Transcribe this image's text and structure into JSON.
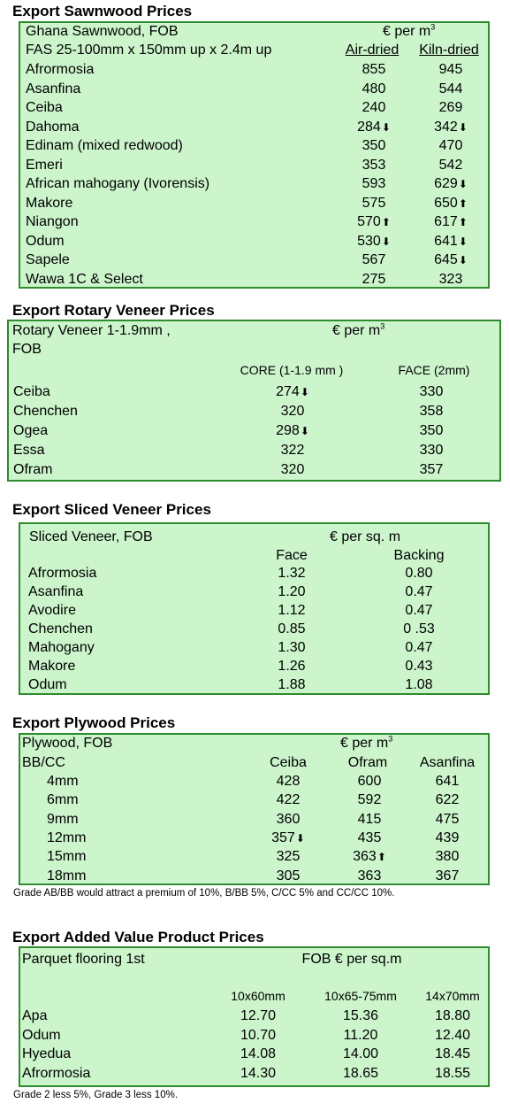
{
  "sawnwood": {
    "title": "Export Sawnwood Prices",
    "caption1": "Ghana Sawnwood, FOB",
    "unit": "€ per m",
    "unit_sup": "3",
    "caption2": "FAS 25-100mm x 150mm up x 2.4m up",
    "col1": "Air-dried",
    "col2": "Kiln-dried",
    "rows": [
      {
        "name": "Afrormosia",
        "v1": "855",
        "a1": "",
        "v2": "945",
        "a2": ""
      },
      {
        "name": "Asanfina",
        "v1": "480",
        "a1": "",
        "v2": "544",
        "a2": ""
      },
      {
        "name": "Ceiba",
        "v1": "240",
        "a1": "",
        "v2": "269",
        "a2": ""
      },
      {
        "name": "Dahoma",
        "v1": "284",
        "a1": "down",
        "v2": "342",
        "a2": "down"
      },
      {
        "name": "Edinam (mixed redwood)",
        "v1": "350",
        "a1": "",
        "v2": "470",
        "a2": ""
      },
      {
        "name": "Emeri",
        "v1": "353",
        "a1": "",
        "v2": "542",
        "a2": ""
      },
      {
        "name": "African mahogany (Ivorensis)",
        "v1": "593",
        "a1": "",
        "v2": "629",
        "a2": "down"
      },
      {
        "name": "Makore",
        "v1": "575",
        "a1": "",
        "v2": "650",
        "a2": "up"
      },
      {
        "name": "Niangon",
        "v1": "570",
        "a1": "up",
        "v2": "617",
        "a2": "up"
      },
      {
        "name": "Odum",
        "v1": "530",
        "a1": "down",
        "v2": "641",
        "a2": "down"
      },
      {
        "name": "Sapele",
        "v1": "567",
        "a1": "",
        "v2": "645",
        "a2": "down"
      },
      {
        "name": "Wawa 1C & Select",
        "v1": "275",
        "a1": "",
        "v2": "323",
        "a2": ""
      }
    ]
  },
  "rotary": {
    "title": "Export Rotary Veneer Prices",
    "caption1": "Rotary Veneer 1-1.9mm ,",
    "caption2": "FOB",
    "unit": "€  per m",
    "unit_sup": "3",
    "col1": "CORE (1-1.9 mm )",
    "col2": "FACE (2mm)",
    "rows": [
      {
        "name": "Ceiba",
        "v1": "274",
        "a1": "down",
        "v2": "330",
        "a2": ""
      },
      {
        "name": "Chenchen",
        "v1": "320",
        "a1": "",
        "v2": "358",
        "a2": ""
      },
      {
        "name": "Ogea",
        "v1": "298",
        "a1": "down",
        "v2": "350",
        "a2": ""
      },
      {
        "name": "Essa",
        "v1": "322",
        "a1": "",
        "v2": "330",
        "a2": ""
      },
      {
        "name": "Ofram",
        "v1": "320",
        "a1": "",
        "v2": "357",
        "a2": ""
      }
    ]
  },
  "sliced": {
    "title": "Export Sliced Veneer Prices",
    "caption1": "Sliced Veneer, FOB",
    "unit": "€ per sq. m",
    "col1": "Face",
    "col2": "Backing",
    "rows": [
      {
        "name": "Afrormosia",
        "v1": "1.32",
        "v2": "0.80"
      },
      {
        "name": "Asanfina",
        "v1": "1.20",
        "v2": "0.47"
      },
      {
        "name": "Avodire",
        "v1": "1.12",
        "v2": "0.47"
      },
      {
        "name": "Chenchen",
        "v1": "0.85",
        "v2": "0 .53"
      },
      {
        "name": "Mahogany",
        "v1": "1.30",
        "v2": "0.47"
      },
      {
        "name": "Makore",
        "v1": "1.26",
        "v2": "0.43"
      },
      {
        "name": "Odum",
        "v1": "1.88",
        "v2": "1.08"
      }
    ]
  },
  "plywood": {
    "title": "Export Plywood Prices",
    "caption1": "Plywood, FOB",
    "unit": "€ per m",
    "unit_sup": "3",
    "caption2": "BB/CC",
    "col1": "Ceiba",
    "col2": "Ofram",
    "col3": "Asanfina",
    "rows": [
      {
        "name": "4mm",
        "v1": "428",
        "a1": "",
        "v2": "600",
        "a2": "",
        "v3": "641"
      },
      {
        "name": "6mm",
        "v1": "422",
        "a1": "",
        "v2": "592",
        "a2": "",
        "v3": "622"
      },
      {
        "name": "9mm",
        "v1": "360",
        "a1": "",
        "v2": "415",
        "a2": "",
        "v3": "475"
      },
      {
        "name": "12mm",
        "v1": "357",
        "a1": "down",
        "v2": "435",
        "a2": "",
        "v3": "439"
      },
      {
        "name": "15mm",
        "v1": "325",
        "a1": "",
        "v2": "363",
        "a2": "up",
        "v3": "380"
      },
      {
        "name": "18mm",
        "v1": "305",
        "a1": "",
        "v2": "363",
        "a2": "",
        "v3": "367"
      }
    ],
    "note": "Grade AB/BB would attract a premium of 10%, B/BB 5%, C/CC 5% and CC/CC 10%."
  },
  "added": {
    "title": "Export Added Value Product Prices",
    "caption1": "Parquet flooring 1st",
    "unit": "FOB € per sq.m",
    "col1": "10x60mm",
    "col2": "10x65-75mm",
    "col3": "14x70mm",
    "rows": [
      {
        "name": "Apa",
        "v1": "12.70",
        "v2": "15.36",
        "v3": "18.80"
      },
      {
        "name": "Odum",
        "v1": "10.70",
        "v2": "11.20",
        "v3": "12.40"
      },
      {
        "name": "Hyedua",
        "v1": "14.08",
        "v2": "14.00",
        "v3": "18.45"
      },
      {
        "name": "Afrormosia",
        "v1": "14.30",
        "v2": "18.65",
        "v3": "18.55"
      }
    ],
    "note": "Grade 2 less 5%, Grade 3 less 10%."
  },
  "icons": {
    "up": "arrow-up-icon",
    "down": "arrow-down-icon"
  }
}
